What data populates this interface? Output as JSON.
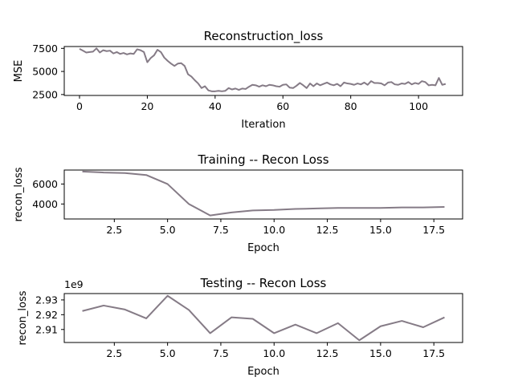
{
  "chart_data": [
    {
      "type": "line",
      "title": "Reconstruction_loss",
      "xlabel": "Iteration",
      "ylabel": "MSE",
      "xlim": [
        -4.5,
        113
      ],
      "ylim": [
        2400,
        7700
      ],
      "xticks": [
        0,
        20,
        40,
        60,
        80,
        100
      ],
      "yticks": [
        2500,
        5000,
        7500
      ],
      "offset_text": "",
      "grid": false,
      "series": [
        {
          "color": "#857b86",
          "x": [
            0,
            1,
            2,
            3,
            4,
            5,
            6,
            7,
            8,
            9,
            10,
            11,
            12,
            13,
            14,
            15,
            16,
            17,
            18,
            19,
            20,
            21,
            22,
            23,
            24,
            25,
            26,
            27,
            28,
            29,
            30,
            31,
            32,
            33,
            34,
            35,
            36,
            37,
            38,
            39,
            40,
            41,
            42,
            43,
            44,
            45,
            46,
            47,
            48,
            49,
            50,
            51,
            52,
            53,
            54,
            55,
            56,
            57,
            58,
            59,
            60,
            61,
            62,
            63,
            64,
            65,
            66,
            67,
            68,
            69,
            70,
            71,
            72,
            73,
            74,
            75,
            76,
            77,
            78,
            79,
            80,
            81,
            82,
            83,
            84,
            85,
            86,
            87,
            88,
            89,
            90,
            91,
            92,
            93,
            94,
            95,
            96,
            97,
            98,
            99,
            100,
            101,
            102,
            103,
            104,
            105,
            106,
            107,
            108
          ],
          "y": [
            7450,
            7250,
            7050,
            7100,
            7150,
            7500,
            7050,
            7300,
            7200,
            7250,
            6950,
            7100,
            6900,
            7000,
            6850,
            6950,
            6900,
            7400,
            7300,
            7100,
            6000,
            6450,
            6750,
            7350,
            7100,
            6500,
            6150,
            5850,
            5600,
            5850,
            5900,
            5600,
            4700,
            4450,
            4050,
            3700,
            3200,
            3400,
            2950,
            2850,
            2850,
            2900,
            2850,
            2900,
            3200,
            3050,
            3150,
            3000,
            3150,
            3100,
            3350,
            3550,
            3500,
            3350,
            3500,
            3400,
            3550,
            3500,
            3400,
            3350,
            3550,
            3600,
            3250,
            3200,
            3450,
            3750,
            3500,
            3200,
            3700,
            3400,
            3700,
            3500,
            3650,
            3800,
            3600,
            3500,
            3650,
            3400,
            3800,
            3700,
            3650,
            3550,
            3700,
            3600,
            3800,
            3550,
            3950,
            3750,
            3750,
            3700,
            3500,
            3800,
            3850,
            3600,
            3550,
            3700,
            3650,
            3850,
            3600,
            3750,
            3650,
            3950,
            3850,
            3500,
            3550,
            3500,
            4300,
            3550,
            3650
          ]
        }
      ]
    },
    {
      "type": "line",
      "title": "Training -- Recon Loss",
      "xlabel": "Epoch",
      "ylabel": "recon_loss",
      "xlim": [
        0.15,
        18.85
      ],
      "ylim": [
        2500,
        7400
      ],
      "xticks": [
        2.5,
        5.0,
        7.5,
        10.0,
        12.5,
        15.0,
        17.5
      ],
      "yticks": [
        4000,
        6000
      ],
      "offset_text": "",
      "grid": false,
      "series": [
        {
          "color": "#857b86",
          "x": [
            1,
            2,
            3,
            4,
            5,
            6,
            7,
            8,
            9,
            10,
            11,
            12,
            13,
            14,
            15,
            16,
            17,
            18
          ],
          "y": [
            7250,
            7150,
            7100,
            6900,
            6000,
            4000,
            2850,
            3150,
            3350,
            3400,
            3500,
            3550,
            3600,
            3600,
            3600,
            3650,
            3650,
            3700
          ]
        }
      ]
    },
    {
      "type": "line",
      "title": "Testing -- Recon Loss",
      "xlabel": "Epoch",
      "ylabel": "recon_loss",
      "xlim": [
        0.15,
        18.85
      ],
      "ylim": [
        2.9012,
        2.9343
      ],
      "xticks": [
        2.5,
        5.0,
        7.5,
        10.0,
        12.5,
        15.0,
        17.5
      ],
      "yticks": [
        2.91,
        2.92,
        2.93
      ],
      "offset_text": "1e9",
      "grid": false,
      "series": [
        {
          "color": "#857b86",
          "x": [
            1,
            2,
            3,
            4,
            5,
            6,
            7,
            8,
            9,
            10,
            11,
            12,
            13,
            14,
            15,
            16,
            17,
            18
          ],
          "y": [
            2.9225,
            2.9262,
            2.9235,
            2.9175,
            2.9328,
            2.9232,
            2.9075,
            2.9182,
            2.9172,
            2.9075,
            2.9133,
            2.9075,
            2.9143,
            2.9027,
            2.9122,
            2.9158,
            2.9115,
            2.9182
          ]
        }
      ]
    }
  ]
}
